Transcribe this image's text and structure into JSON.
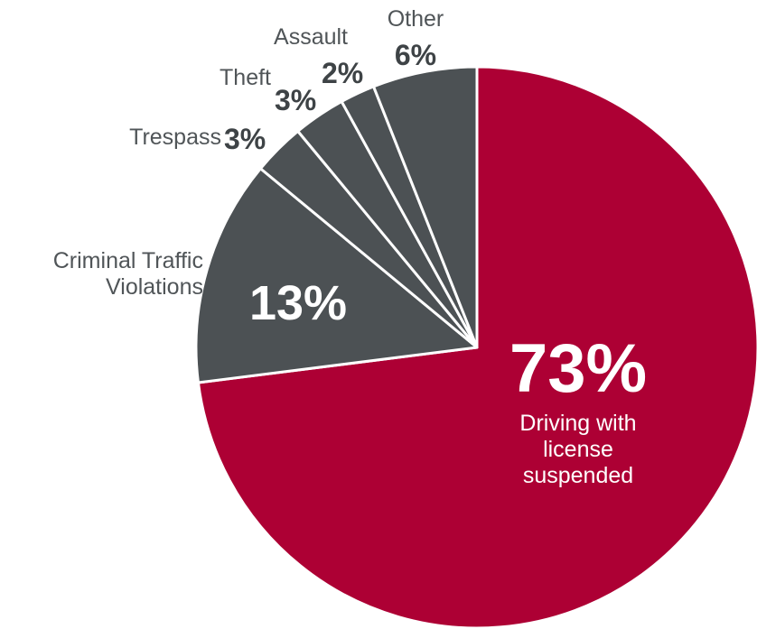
{
  "chart_data": {
    "type": "pie",
    "categories": [
      "Driving with license suspended",
      "Criminal Traffic Violations",
      "Trespass",
      "Theft",
      "Assault",
      "Other"
    ],
    "values": [
      73,
      13,
      3,
      3,
      2,
      6
    ],
    "value_labels": [
      "73%",
      "13%",
      "3%",
      "3%",
      "2%",
      "6%"
    ],
    "colors": [
      "#ad0034",
      "#4c5154",
      "#4c5154",
      "#4c5154",
      "#4c5154",
      "#4c5154"
    ]
  }
}
